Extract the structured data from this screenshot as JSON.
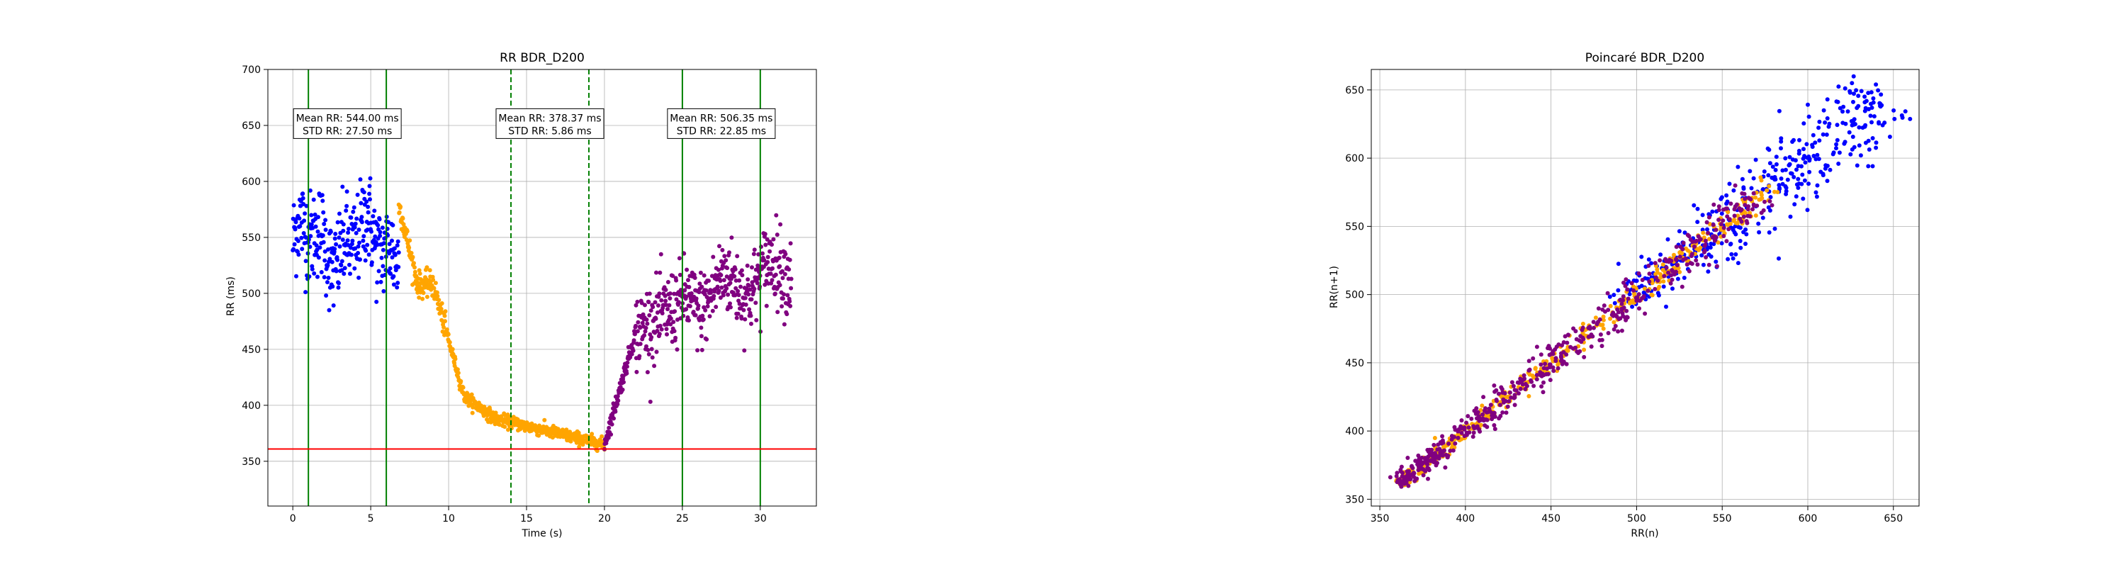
{
  "chart_data": [
    {
      "type": "scatter",
      "title": "RR BDR_D200",
      "xlabel": "Time (s)",
      "ylabel": "RR (ms)",
      "xlim": [
        -1.6,
        33.6
      ],
      "ylim": [
        310,
        700
      ],
      "xticks": [
        0,
        5,
        10,
        15,
        20,
        25,
        30
      ],
      "yticks": [
        350,
        400,
        450,
        500,
        550,
        600,
        650,
        700
      ],
      "grid": true,
      "colors": {
        "baseline": "#0000ff",
        "transition": "#ffa500",
        "recovery": "#800080",
        "threshold": "#ff0000",
        "window_solid": "#008000",
        "window_dashed": "#008000"
      },
      "segments": [
        {
          "name": "",
          "color": "#0000ff",
          "t_start": 0.0,
          "t_end": 6.8,
          "mean": 545,
          "noise": 30,
          "shape": "flat"
        },
        {
          "name": "",
          "color": "#ffa500",
          "t_start": 6.8,
          "t_end": 20.0,
          "mean_start": 580,
          "mean_end": 365,
          "noise": 6,
          "shape": "decay"
        },
        {
          "name": "",
          "color": "#800080",
          "t_start": 20.0,
          "t_end": 32.0,
          "mean_start": 365,
          "mean_end": 525,
          "noise": 25,
          "shape": "recovery"
        }
      ],
      "threshold_line": {
        "y": 361
      },
      "vertical_lines": [
        {
          "x": 1,
          "style": "solid"
        },
        {
          "x": 6,
          "style": "solid"
        },
        {
          "x": 14,
          "style": "dashed"
        },
        {
          "x": 19,
          "style": "dashed"
        },
        {
          "x": 25,
          "style": "solid"
        },
        {
          "x": 30,
          "style": "solid"
        }
      ],
      "annotations": [
        {
          "x": 3.5,
          "y": 651,
          "line1": "Mean RR: 544.00 ms",
          "line2": "STD RR: 27.50 ms"
        },
        {
          "x": 16.5,
          "y": 651,
          "line1": "Mean RR: 378.37 ms",
          "line2": "STD RR: 5.86 ms"
        },
        {
          "x": 27.5,
          "y": 651,
          "line1": "Mean RR: 506.35 ms",
          "line2": "STD RR: 22.85 ms"
        }
      ]
    },
    {
      "type": "scatter",
      "title": "Poincaré BDR_D200",
      "xlabel": "RR(n)",
      "ylabel": "RR(n+1)",
      "xlim": [
        345,
        665
      ],
      "ylim": [
        345,
        665
      ],
      "xticks": [
        350,
        400,
        450,
        500,
        550,
        600,
        650
      ],
      "yticks": [
        350,
        400,
        450,
        500,
        550,
        600,
        650
      ],
      "grid": true,
      "colors": {
        "baseline": "#0000ff",
        "transition": "#ffa500",
        "recovery": "#800080"
      },
      "clusters": [
        {
          "color": "#0000ff",
          "center_min": 490,
          "center_max": 645,
          "spread": 14,
          "count": 380
        },
        {
          "color": "#ffa500",
          "center_min": 362,
          "center_max": 580,
          "spread": 4,
          "count": 420
        },
        {
          "color": "#800080",
          "center_min": 362,
          "center_max": 575,
          "spread": 9,
          "count": 520
        }
      ]
    }
  ]
}
